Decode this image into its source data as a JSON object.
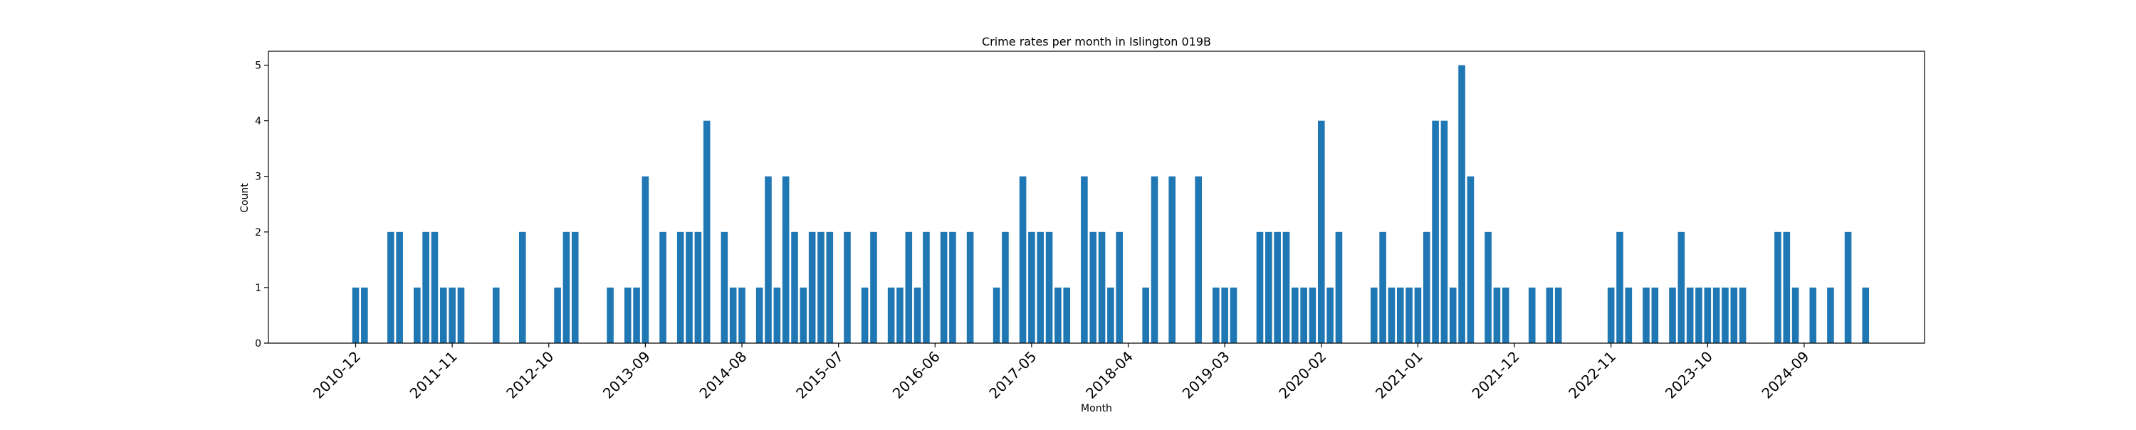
{
  "chart_data": {
    "type": "bar",
    "title": "Crime rates per month in Islington 019B",
    "xlabel": "Month",
    "ylabel": "Count",
    "ylim": [
      0,
      5.25
    ],
    "yticks": [
      0,
      1,
      2,
      3,
      4,
      5
    ],
    "xtick_labels": [
      "2010-12",
      "2011-11",
      "2012-10",
      "2013-09",
      "2014-08",
      "2015-07",
      "2016-06",
      "2017-05",
      "2018-04",
      "2019-03",
      "2020-02",
      "2021-01",
      "2021-12",
      "2022-11",
      "2023-10",
      "2024-09"
    ],
    "grid": false,
    "legend": "none",
    "bar_color": "#1f77b4",
    "first_month": "2010-12",
    "series": [
      {
        "values": [
          1,
          1,
          0,
          0,
          2,
          2,
          0,
          1,
          2,
          2,
          1,
          1,
          1,
          0,
          0,
          0,
          1,
          0,
          0,
          2,
          0,
          0,
          0,
          1,
          2,
          2,
          0,
          0,
          0,
          1,
          0,
          1,
          1,
          3,
          0,
          2,
          0,
          2,
          2,
          2,
          4,
          0,
          2,
          1,
          1,
          0,
          1,
          3,
          1,
          3,
          2,
          1,
          2,
          2,
          2,
          0,
          2,
          0,
          1,
          2,
          0,
          1,
          1,
          2,
          1,
          2,
          0,
          2,
          2,
          0,
          2,
          0,
          0,
          1,
          2,
          0,
          3,
          2,
          2,
          2,
          1,
          1,
          0,
          3,
          2,
          2,
          1,
          2,
          0,
          0,
          1,
          3,
          0,
          3,
          0,
          0,
          3,
          0,
          1,
          1,
          1,
          0,
          0,
          2,
          2,
          2,
          2,
          1,
          1,
          1,
          4,
          1,
          2,
          0,
          0,
          0,
          1,
          2,
          1,
          1,
          1,
          1,
          2,
          4,
          4,
          1,
          5,
          3,
          0,
          2,
          1,
          1,
          0,
          0,
          1,
          0,
          1,
          1,
          0,
          0,
          0,
          0,
          0,
          1,
          2,
          1,
          0,
          1,
          1,
          0,
          1,
          2,
          1,
          1,
          1,
          1,
          1,
          1,
          1,
          0,
          0,
          0,
          2,
          2,
          1,
          0,
          1,
          0,
          1,
          0,
          2,
          0,
          1
        ]
      }
    ]
  }
}
